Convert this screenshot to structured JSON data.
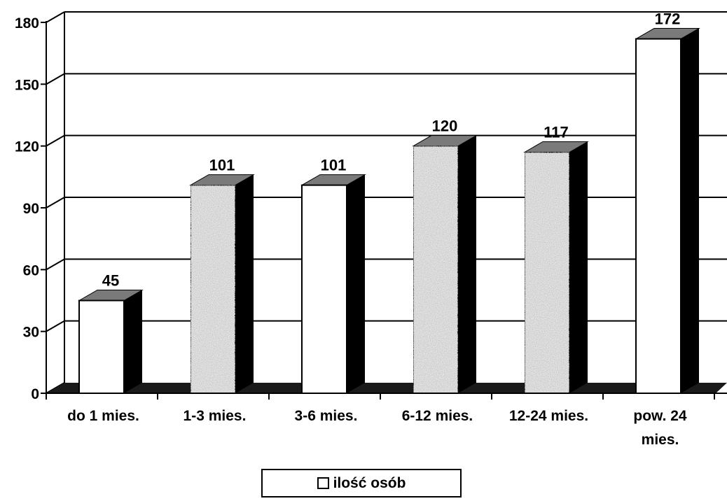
{
  "chart_data": {
    "type": "bar",
    "title": "",
    "xlabel": "",
    "ylabel": "",
    "categories": [
      "do 1 mies.",
      "1-3 mies.",
      "3-6 mies.",
      "6-12 mies.",
      "12-24 mies.",
      "pow. 24 mies."
    ],
    "category_lines": [
      [
        "do 1 mies."
      ],
      [
        "1-3 mies."
      ],
      [
        "3-6 mies."
      ],
      [
        "6-12 mies."
      ],
      [
        "12-24 mies."
      ],
      [
        "pow. 24",
        "mies."
      ]
    ],
    "series": [
      {
        "name": "ilość osób",
        "values": [
          45,
          101,
          101,
          120,
          117,
          172
        ]
      }
    ],
    "data_labels": [
      "45",
      "101",
      "101",
      "120",
      "117",
      "172"
    ],
    "ylim": [
      0,
      180
    ],
    "yticks": [
      0,
      30,
      60,
      90,
      120,
      150,
      180
    ],
    "grid": true,
    "three_d": true,
    "legend_position": "bottom-center",
    "colors": {
      "face_light": "#ffffff",
      "face_speckled": "#e6e6e6",
      "bar_top": "#7a7a7a",
      "bar_side": "#000000",
      "gridline": "#000000"
    }
  },
  "legend": {
    "label": "ilość osób"
  }
}
